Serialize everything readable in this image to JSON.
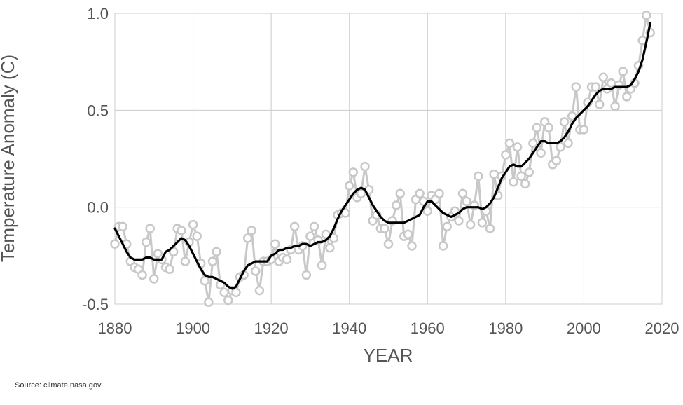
{
  "chart_data": {
    "type": "line",
    "title": "",
    "xlabel": "YEAR",
    "ylabel": "Temperature Anomaly (C)",
    "xlim": [
      1880,
      2020
    ],
    "ylim": [
      -0.5,
      1.0
    ],
    "xticks": [
      "1880",
      "1900",
      "1920",
      "1940",
      "1960",
      "1980",
      "2000",
      "2020"
    ],
    "yticks": [
      "1.0",
      "0.5",
      "0.0",
      "-0.5"
    ],
    "grid": true,
    "legend": "none",
    "series": [
      {
        "style": "annual-markers",
        "color": "#c8c8c8",
        "x": [
          1880,
          1881,
          1882,
          1883,
          1884,
          1885,
          1886,
          1887,
          1888,
          1889,
          1890,
          1891,
          1892,
          1893,
          1894,
          1895,
          1896,
          1897,
          1898,
          1899,
          1900,
          1901,
          1902,
          1903,
          1904,
          1905,
          1906,
          1907,
          1908,
          1909,
          1910,
          1911,
          1912,
          1913,
          1914,
          1915,
          1916,
          1917,
          1918,
          1919,
          1920,
          1921,
          1922,
          1923,
          1924,
          1925,
          1926,
          1927,
          1928,
          1929,
          1930,
          1931,
          1932,
          1933,
          1934,
          1935,
          1936,
          1937,
          1938,
          1939,
          1940,
          1941,
          1942,
          1943,
          1944,
          1945,
          1946,
          1947,
          1948,
          1949,
          1950,
          1951,
          1952,
          1953,
          1954,
          1955,
          1956,
          1957,
          1958,
          1959,
          1960,
          1961,
          1962,
          1963,
          1964,
          1965,
          1966,
          1967,
          1968,
          1969,
          1970,
          1971,
          1972,
          1973,
          1974,
          1975,
          1976,
          1977,
          1978,
          1979,
          1980,
          1981,
          1982,
          1983,
          1984,
          1985,
          1986,
          1987,
          1988,
          1989,
          1990,
          1991,
          1992,
          1993,
          1994,
          1995,
          1996,
          1997,
          1998,
          1999,
          2000,
          2001,
          2002,
          2003,
          2004,
          2005,
          2006,
          2007,
          2008,
          2009,
          2010,
          2011,
          2012,
          2013,
          2014,
          2015,
          2016,
          2017
        ],
        "y": [
          -0.19,
          -0.1,
          -0.1,
          -0.19,
          -0.28,
          -0.31,
          -0.32,
          -0.35,
          -0.18,
          -0.11,
          -0.37,
          -0.24,
          -0.27,
          -0.31,
          -0.32,
          -0.23,
          -0.11,
          -0.12,
          -0.28,
          -0.18,
          -0.09,
          -0.15,
          -0.29,
          -0.38,
          -0.49,
          -0.28,
          -0.23,
          -0.4,
          -0.44,
          -0.48,
          -0.43,
          -0.44,
          -0.36,
          -0.35,
          -0.16,
          -0.12,
          -0.33,
          -0.43,
          -0.28,
          -0.28,
          -0.27,
          -0.19,
          -0.28,
          -0.26,
          -0.27,
          -0.22,
          -0.1,
          -0.22,
          -0.2,
          -0.35,
          -0.15,
          -0.1,
          -0.17,
          -0.3,
          -0.14,
          -0.21,
          -0.16,
          -0.04,
          -0.03,
          -0.03,
          0.11,
          0.18,
          0.05,
          0.07,
          0.21,
          0.09,
          -0.07,
          -0.04,
          -0.11,
          -0.11,
          -0.19,
          -0.07,
          0.01,
          0.07,
          -0.15,
          -0.14,
          -0.2,
          0.04,
          0.07,
          0.03,
          -0.02,
          0.06,
          0.04,
          0.07,
          -0.2,
          -0.1,
          -0.05,
          -0.02,
          -0.07,
          0.07,
          0.03,
          -0.09,
          0.01,
          0.16,
          -0.08,
          -0.02,
          -0.11,
          0.17,
          0.06,
          0.16,
          0.27,
          0.33,
          0.13,
          0.31,
          0.16,
          0.12,
          0.18,
          0.33,
          0.41,
          0.28,
          0.44,
          0.41,
          0.22,
          0.24,
          0.31,
          0.44,
          0.33,
          0.47,
          0.62,
          0.4,
          0.4,
          0.54,
          0.62,
          0.62,
          0.53,
          0.67,
          0.61,
          0.64,
          0.52,
          0.63,
          0.7,
          0.57,
          0.61,
          0.64,
          0.73,
          0.86,
          0.99,
          0.9
        ]
      },
      {
        "style": "smoothed-line",
        "color": "#000000",
        "x": [
          1880,
          1881,
          1882,
          1883,
          1884,
          1885,
          1886,
          1887,
          1888,
          1889,
          1890,
          1891,
          1892,
          1893,
          1894,
          1895,
          1896,
          1897,
          1898,
          1899,
          1900,
          1901,
          1902,
          1903,
          1904,
          1905,
          1906,
          1907,
          1908,
          1909,
          1910,
          1911,
          1912,
          1913,
          1914,
          1915,
          1916,
          1917,
          1918,
          1919,
          1920,
          1921,
          1922,
          1923,
          1924,
          1925,
          1926,
          1927,
          1928,
          1929,
          1930,
          1931,
          1932,
          1933,
          1934,
          1935,
          1936,
          1937,
          1938,
          1939,
          1940,
          1941,
          1942,
          1943,
          1944,
          1945,
          1946,
          1947,
          1948,
          1949,
          1950,
          1951,
          1952,
          1953,
          1954,
          1955,
          1956,
          1957,
          1958,
          1959,
          1960,
          1961,
          1962,
          1963,
          1964,
          1965,
          1966,
          1967,
          1968,
          1969,
          1970,
          1971,
          1972,
          1973,
          1974,
          1975,
          1976,
          1977,
          1978,
          1979,
          1980,
          1981,
          1982,
          1983,
          1984,
          1985,
          1986,
          1987,
          1988,
          1989,
          1990,
          1991,
          1992,
          1993,
          1994,
          1995,
          1996,
          1997,
          1998,
          1999,
          2000,
          2001,
          2002,
          2003,
          2004,
          2005,
          2006,
          2007,
          2008,
          2009,
          2010,
          2011,
          2012,
          2013,
          2014,
          2015,
          2016,
          2017
        ],
        "y": [
          -0.11,
          -0.15,
          -0.19,
          -0.23,
          -0.26,
          -0.27,
          -0.27,
          -0.27,
          -0.26,
          -0.26,
          -0.27,
          -0.27,
          -0.27,
          -0.23,
          -0.22,
          -0.2,
          -0.18,
          -0.16,
          -0.17,
          -0.2,
          -0.24,
          -0.28,
          -0.32,
          -0.35,
          -0.36,
          -0.36,
          -0.37,
          -0.38,
          -0.39,
          -0.41,
          -0.42,
          -0.41,
          -0.37,
          -0.33,
          -0.3,
          -0.29,
          -0.28,
          -0.28,
          -0.28,
          -0.28,
          -0.25,
          -0.24,
          -0.22,
          -0.22,
          -0.21,
          -0.21,
          -0.2,
          -0.2,
          -0.19,
          -0.19,
          -0.2,
          -0.19,
          -0.18,
          -0.18,
          -0.17,
          -0.15,
          -0.11,
          -0.06,
          -0.02,
          0.01,
          0.04,
          0.07,
          0.09,
          0.1,
          0.09,
          0.05,
          0.01,
          -0.02,
          -0.05,
          -0.07,
          -0.08,
          -0.08,
          -0.08,
          -0.08,
          -0.08,
          -0.07,
          -0.06,
          -0.05,
          -0.04,
          0.0,
          0.03,
          0.03,
          0.01,
          -0.01,
          -0.03,
          -0.04,
          -0.05,
          -0.04,
          -0.03,
          -0.01,
          0.0,
          0.0,
          0.0,
          0.0,
          -0.01,
          0.0,
          0.02,
          0.05,
          0.1,
          0.15,
          0.18,
          0.21,
          0.22,
          0.21,
          0.21,
          0.23,
          0.25,
          0.28,
          0.31,
          0.34,
          0.34,
          0.33,
          0.33,
          0.33,
          0.34,
          0.36,
          0.39,
          0.43,
          0.46,
          0.48,
          0.5,
          0.52,
          0.55,
          0.58,
          0.6,
          0.61,
          0.61,
          0.61,
          0.62,
          0.62,
          0.62,
          0.62,
          0.63,
          0.66,
          0.7,
          0.76,
          0.85,
          0.95
        ]
      }
    ]
  },
  "source_note": "Source: climate.nasa.gov"
}
